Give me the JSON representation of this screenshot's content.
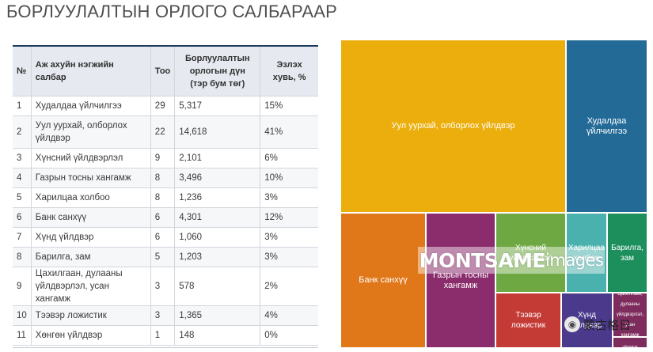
{
  "title": "БОРЛУУЛАЛТЫН ОРЛОГО САЛБАРААР",
  "table": {
    "headers": [
      "№",
      "Аж ахуйн нэгжийн салбар",
      "Тоо",
      "Борлуулалтын орлогын дүн (тэр бум төг)",
      "Эзлэх хувь, %"
    ],
    "header_rev_lines": [
      "Борлуулалтын",
      "орлогын дүн",
      "(тэр бум төг)"
    ],
    "header_share_lines": [
      "Эзлэх",
      "хувь, %"
    ],
    "rows": [
      {
        "no": "1",
        "name": "Худалдаа үйлчилгээ",
        "count": "29",
        "revenue": "5,317",
        "share": "15%"
      },
      {
        "no": "2",
        "name": "Уул уурхай, олборлох үйлдвэр",
        "count": "22",
        "revenue": "14,618",
        "share": "41%"
      },
      {
        "no": "3",
        "name": "Хүнсний үйлдвэрлэл",
        "count": "9",
        "revenue": "2,101",
        "share": "6%"
      },
      {
        "no": "4",
        "name": "Газрын тосны хангамж",
        "count": "8",
        "revenue": "3,496",
        "share": "10%"
      },
      {
        "no": "5",
        "name": "Харилцаа холбоо",
        "count": "8",
        "revenue": "1,236",
        "share": "3%"
      },
      {
        "no": "6",
        "name": "Банк санхүү",
        "count": "6",
        "revenue": "4,301",
        "share": "12%"
      },
      {
        "no": "7",
        "name": "Хүнд үйлдвэр",
        "count": "6",
        "revenue": "1,060",
        "share": "3%"
      },
      {
        "no": "8",
        "name": "Барилга, зам",
        "count": "5",
        "revenue": "1,203",
        "share": "3%"
      },
      {
        "no": "9",
        "name": "Цахилгаан, дулааны үйлдвэрлэл, усан хангамж",
        "count": "3",
        "revenue": "578",
        "share": "2%"
      },
      {
        "no": "10",
        "name": "Тээвэр ложистик",
        "count": "3",
        "revenue": "1,365",
        "share": "4%"
      },
      {
        "no": "11",
        "name": "Хөнгөн үйлдвэр",
        "count": "1",
        "revenue": "148",
        "share": "0%"
      }
    ]
  },
  "chart_data": {
    "type": "treemap",
    "title": "",
    "labels": [
      "Уул уурхай, олборлох үйлдвэр",
      "Худалдаа үйлчилгээ",
      "Банк санхүү",
      "Газрын тосны хангамж",
      "Хүнсний үйлдвэрлэл",
      "Харилцаа холбоо",
      "Барилга, зам",
      "Тээвэр ложистик",
      "Хүнд үйлдвэр",
      "Цахилгаан, дулааны үйлдвэрлэл, усан хангамж",
      "Хөнгөн үйлдвэр"
    ],
    "values": [
      14618,
      5317,
      4301,
      3496,
      2101,
      1236,
      1203,
      1365,
      1060,
      578,
      148
    ],
    "colors": [
      "#ebae0c",
      "#236a97",
      "#e0781a",
      "#8b2c6c",
      "#6ea843",
      "#4bb1ae",
      "#1c8f5d",
      "#c43b36",
      "#4b3a8c",
      "#7e2c5e",
      "#7e2c5e"
    ]
  },
  "watermark": {
    "bold": "MONTSAME",
    "light": "images"
  },
  "badge": {
    "text": "蒙古格日",
    "icon": "chat-icon"
  }
}
